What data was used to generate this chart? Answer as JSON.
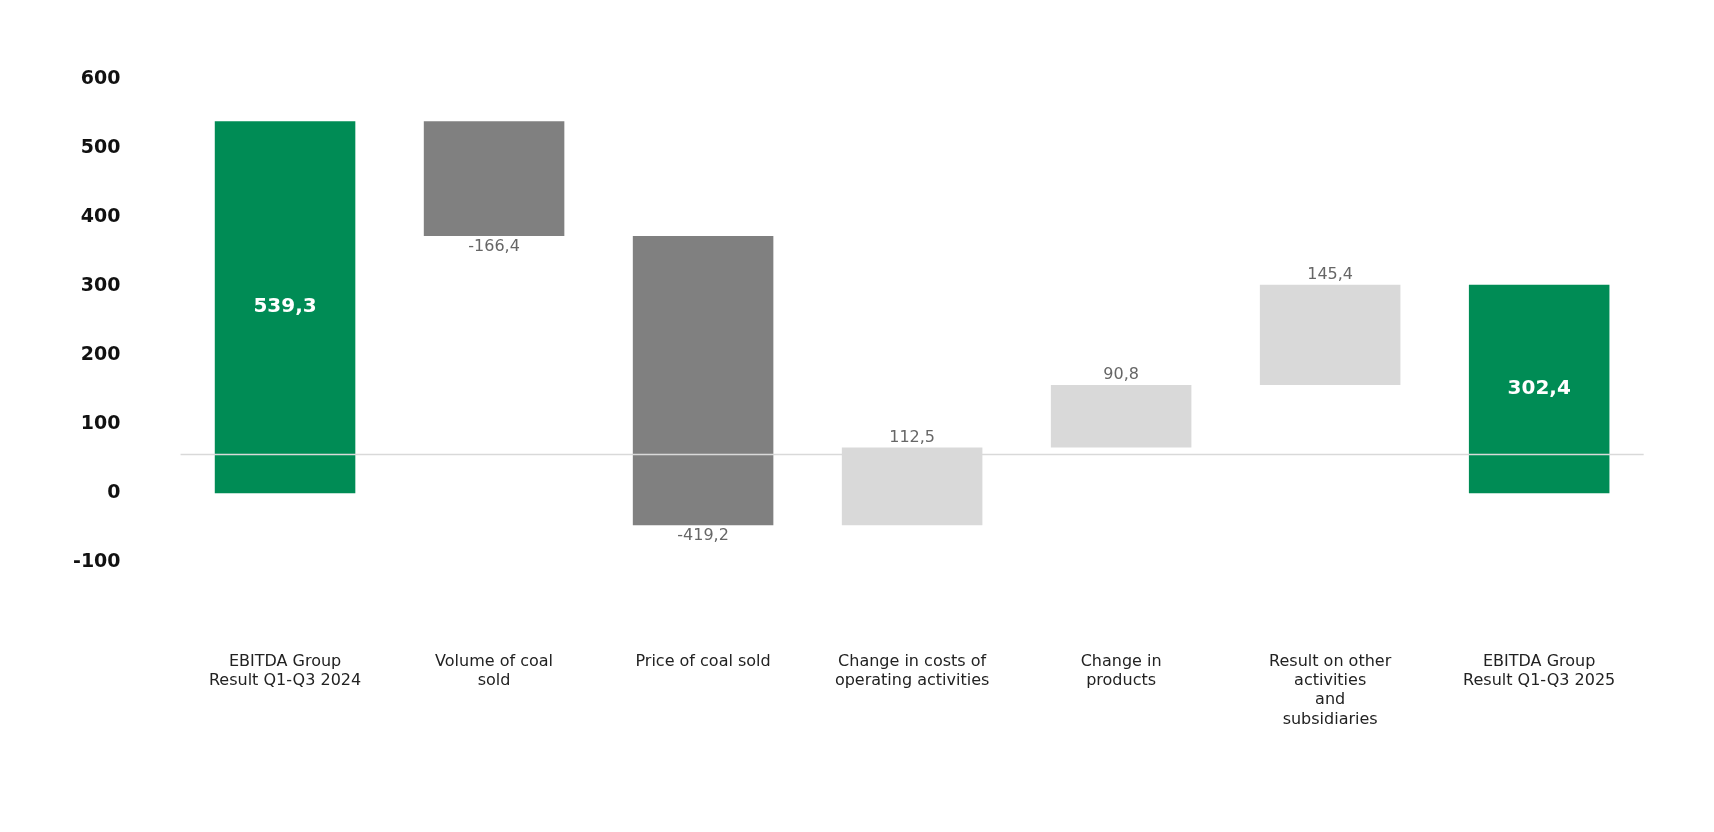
{
  "chart_data": {
    "type": "bar",
    "categories": [
      "EBITDA Group\nResult Q1-Q3 2024",
      "Volume of coal\nsold",
      "Price of coal sold",
      "Change in costs of\noperating activities",
      "Change in\nproducts",
      "Result on other\nactivities\nand\nsubsidiaries",
      "EBITDA Group\nResult Q1-Q3 2025"
    ],
    "values": [
      539.3,
      -166.4,
      -419.2,
      112.5,
      90.8,
      145.4,
      302.4
    ],
    "base": [
      0,
      539.3,
      372.9,
      -46.3,
      66.2,
      157,
      0
    ],
    "colors": [
      "#008c55",
      "#808080",
      "#808080",
      "#d9d9d9",
      "#d9d9d9",
      "#d9d9d9",
      "#008c55"
    ],
    "value_labels": [
      "539,3",
      "-166,4",
      "-419,2",
      "112,5",
      "90,8",
      "145,4",
      "302,4"
    ],
    "ylim": [
      -100,
      600
    ],
    "yticks": [
      -100,
      0,
      100,
      200,
      300,
      400,
      500,
      600
    ],
    "ref_lines": [
      {
        "axis": "y",
        "value": 56,
        "color": "#d9d9d9"
      }
    ],
    "grid": false,
    "legend": false
  }
}
